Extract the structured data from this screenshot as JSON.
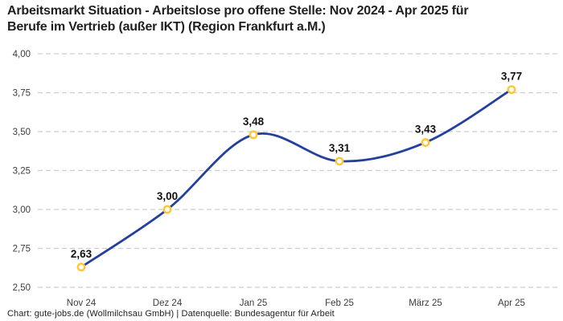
{
  "header": {
    "title_line1": "Arbeitsmarkt Situation - Arbeitslose pro offene Stelle: Nov 2024 - Apr 2025 für",
    "title_line2": "Berufe im Vertrieb (außer IKT) (Region Frankfurt a.M.)"
  },
  "chart_data": {
    "type": "line",
    "title": "Arbeitsmarkt Situation - Arbeitslose pro offene Stelle: Nov 2024 - Apr 2025 für Berufe im Vertrieb (außer IKT) (Region Frankfurt a.M.)",
    "categories": [
      "Nov 24",
      "Dez 24",
      "Jan 25",
      "Feb 25",
      "März 25",
      "Apr 25"
    ],
    "values": [
      2.63,
      3.0,
      3.48,
      3.31,
      3.43,
      3.77
    ],
    "value_labels": [
      "2,63",
      "3,00",
      "3,48",
      "3,31",
      "3,43",
      "3,77"
    ],
    "ylim": [
      2.5,
      4.0
    ],
    "yticks": [
      4.0,
      3.75,
      3.5,
      3.25,
      3.0,
      2.75,
      2.5
    ],
    "ytick_labels": [
      "4,00",
      "3,75",
      "3,50",
      "3,25",
      "3,00",
      "2,75",
      "2,50"
    ],
    "xlabel": "",
    "ylabel": "",
    "grid": "horizontal-dashed",
    "legend": "none",
    "line_style": "smooth"
  },
  "footer": {
    "text": "Chart: gute-jobs.de (Wollmilchsau GmbH) | Datenquelle: Bundesagentur für Arbeit"
  },
  "colors": {
    "line": "#24409e",
    "marker_stroke": "#ffc532",
    "marker_fill": "#ffffff",
    "grid": "#cdcdcd",
    "title_text": "#1f1f1f",
    "axis_text": "#3c3c3c",
    "value_text": "#111111",
    "footer_text": "#1f1f1f",
    "background": "#ffffff"
  }
}
